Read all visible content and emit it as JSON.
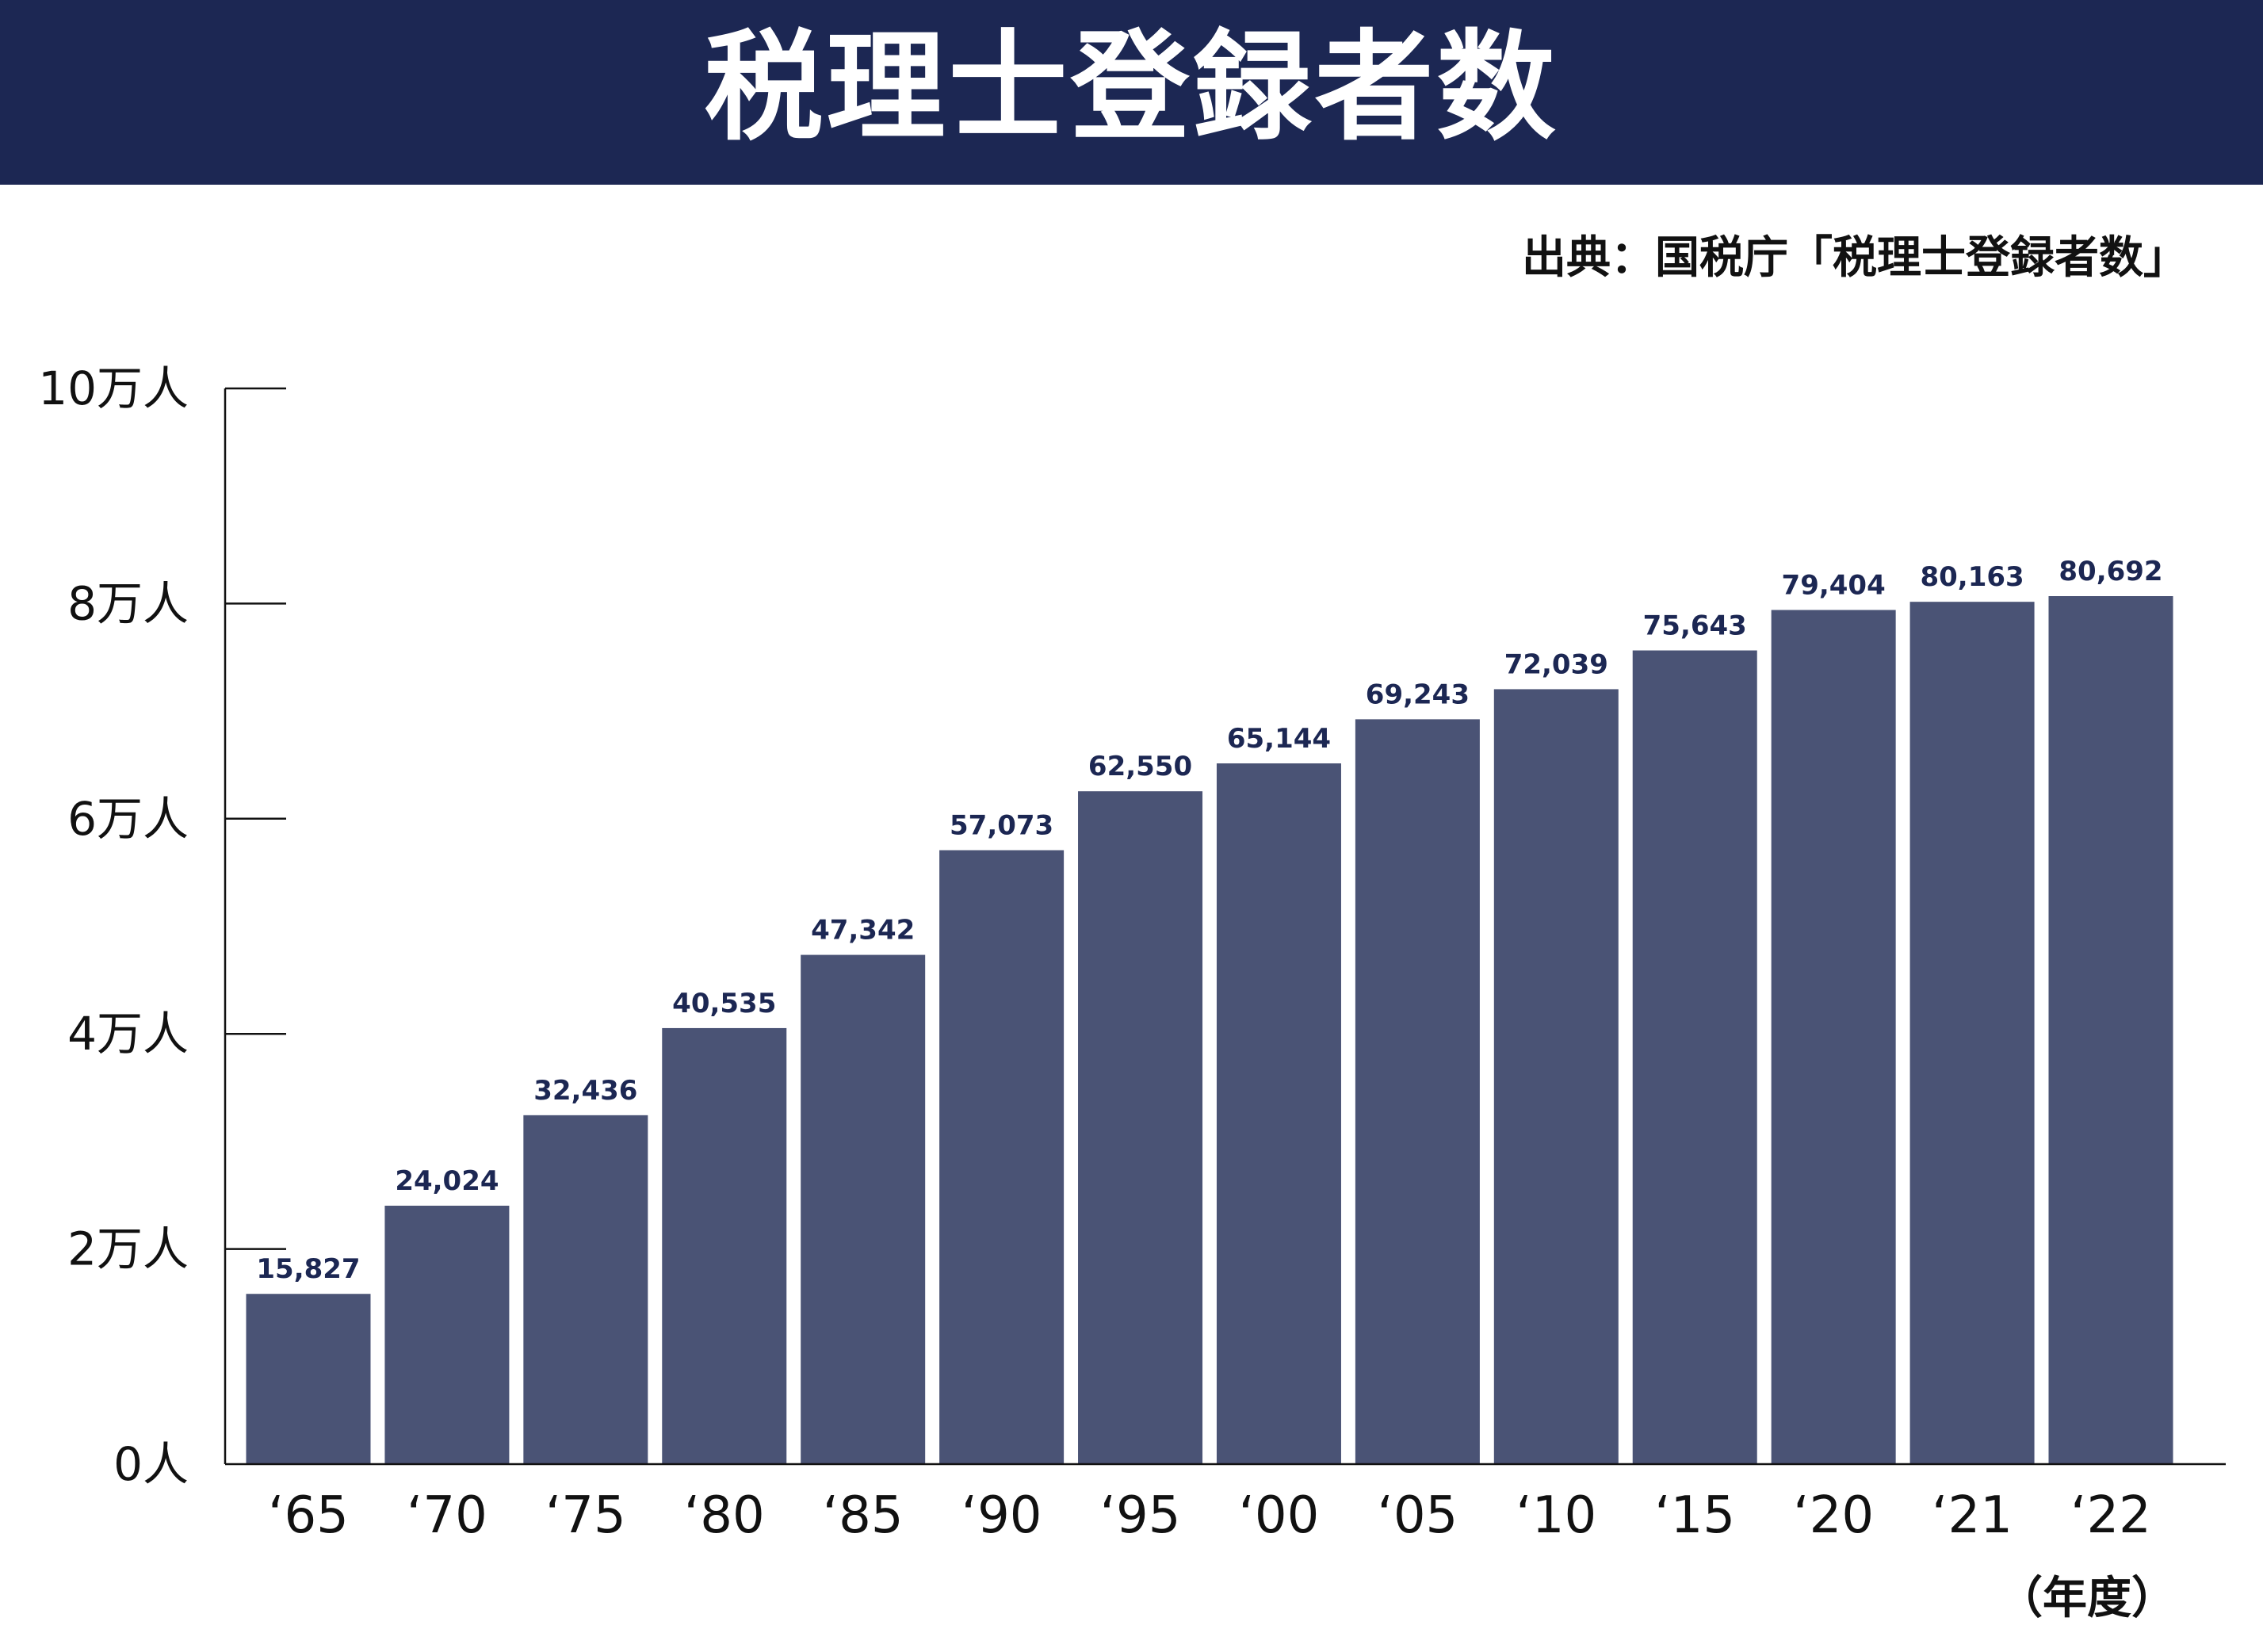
{
  "header": {
    "title": "税理士登録者数",
    "background": "#1c2753"
  },
  "source_note": "出典：国税庁「税理士登録者数」",
  "chart_data": {
    "type": "bar",
    "title": "税理士登録者数",
    "xlabel": "",
    "ylabel": "",
    "unit_label": "（年度）",
    "categories": [
      "‘65",
      "‘70",
      "‘75",
      "‘80",
      "‘85",
      "‘90",
      "‘95",
      "‘00",
      "‘05",
      "‘10",
      "‘15",
      "‘20",
      "‘21",
      "‘22"
    ],
    "values": [
      15827,
      24024,
      32436,
      40535,
      47342,
      57073,
      62550,
      65144,
      69243,
      72039,
      75643,
      79404,
      80163,
      80692
    ],
    "value_labels": [
      "15,827",
      "24,024",
      "32,436",
      "40,535",
      "47,342",
      "57,073",
      "62,550",
      "65,144",
      "69,243",
      "72,039",
      "75,643",
      "79,404",
      "80,163",
      "80,692"
    ],
    "ylim": [
      0,
      100000
    ],
    "yticks": [
      0,
      20000,
      40000,
      60000,
      80000,
      100000
    ],
    "ytick_labels": [
      "0人",
      "2万人",
      "4万人",
      "6万人",
      "8万人",
      "10万人"
    ],
    "bar_color": "#4a5375",
    "grid": false
  }
}
